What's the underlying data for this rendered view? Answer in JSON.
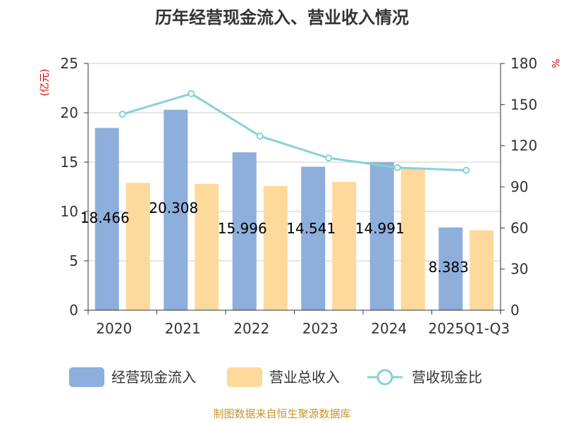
{
  "chart_data": {
    "type": "bar",
    "title": "历年经营现金流入、营业收入情况",
    "categories": [
      "2020",
      "2021",
      "2022",
      "2023",
      "2024",
      "2025Q1-Q3"
    ],
    "y_left": {
      "unit": "(亿元)",
      "range": [
        0,
        25
      ],
      "ticks": [
        "0",
        "5",
        "10",
        "15",
        "20",
        "25"
      ]
    },
    "y_right": {
      "unit": "%",
      "range": [
        0,
        180
      ],
      "ticks": [
        "0",
        "30",
        "60",
        "90",
        "120",
        "150",
        "180"
      ]
    },
    "series": [
      {
        "name": "经营现金流入",
        "kind": "bar",
        "color": "#8eaedb",
        "values": [
          18.466,
          20.308,
          15.996,
          14.541,
          14.991,
          8.383
        ],
        "labels": [
          "18.466",
          "20.308",
          "15.996",
          "14.541",
          "14.991",
          "8.383"
        ]
      },
      {
        "name": "营业总收入",
        "kind": "bar",
        "color": "#fdd99b",
        "values": [
          12.9,
          12.8,
          12.6,
          13.0,
          14.4,
          8.1
        ]
      },
      {
        "name": "营收现金比",
        "kind": "line",
        "color": "#85d2d6",
        "axis": "right",
        "values": [
          143,
          158,
          127,
          111,
          104,
          102
        ]
      }
    ],
    "grid": true,
    "legend": "bottom"
  },
  "source": "制图数据来自恒生聚源数据库"
}
